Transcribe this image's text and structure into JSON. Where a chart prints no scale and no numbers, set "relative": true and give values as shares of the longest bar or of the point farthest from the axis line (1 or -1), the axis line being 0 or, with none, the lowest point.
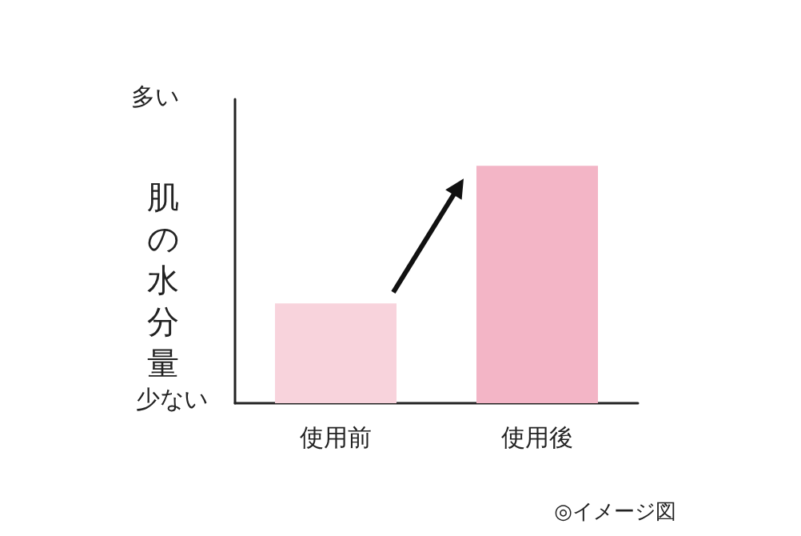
{
  "chart_data": {
    "type": "bar",
    "relative": true,
    "ylabel": "肌の水分量",
    "categories": [
      "使用前",
      "使用後"
    ],
    "values": [
      0.42,
      1
    ],
    "colors": [
      "#f8d3dc",
      "#f3b5c6"
    ],
    "annotations": [
      "多い",
      "少ない",
      "◎イメージ図"
    ],
    "grid": false
  }
}
